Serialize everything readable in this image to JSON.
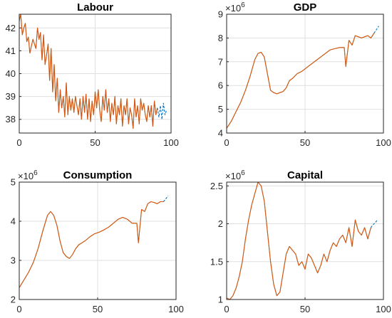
{
  "chart_data": [
    {
      "type": "line",
      "title": "Labour",
      "xlim": [
        0,
        100
      ],
      "ylim": [
        37.4,
        42.6
      ],
      "xticks": [
        0,
        50,
        100
      ],
      "yticks": [
        38,
        39,
        40,
        41,
        42
      ],
      "xticklabels": [
        "0",
        "50",
        "100"
      ],
      "yticklabels": [
        "38",
        "39",
        "40",
        "41",
        "42"
      ],
      "exponent": "",
      "grid": true,
      "series": [
        {
          "color": "#77ac30",
          "style": "solid",
          "x": [
            0,
            1,
            2,
            3,
            4,
            5,
            6,
            7,
            8,
            9,
            10,
            11,
            12,
            13,
            14,
            15,
            16,
            17,
            18,
            19,
            20,
            21,
            22,
            23,
            24,
            25,
            26,
            27,
            28,
            29,
            30,
            31,
            32,
            33,
            34,
            35,
            36,
            37,
            38,
            39,
            40,
            41,
            42,
            43,
            44,
            45,
            46,
            47,
            48,
            49,
            50,
            51,
            52,
            53,
            54,
            55,
            56,
            57,
            58,
            59,
            60,
            61,
            62,
            63,
            64,
            65,
            66,
            67,
            68,
            69,
            70,
            71,
            72,
            73,
            74,
            75,
            76,
            77,
            78,
            79,
            80,
            81,
            82,
            83,
            84,
            85,
            86,
            87,
            88,
            89,
            90,
            91
          ],
          "y": [
            42.3,
            42.6,
            41.7,
            42.0,
            42.2,
            41.4,
            41.6,
            40.9,
            41.2,
            41.5,
            41.3,
            41.1,
            42.0,
            41.5,
            41.8,
            40.6,
            41.7,
            40.4,
            40.8,
            41.3,
            39.7,
            41.1,
            39.2,
            40.4,
            38.8,
            39.8,
            38.3,
            39.3,
            38.5,
            39.0,
            38.1,
            39.6,
            38.2,
            39.0,
            38.4,
            38.9,
            38.3,
            39.0,
            38.6,
            38.2,
            38.9,
            38.0,
            39.0,
            38.3,
            39.1,
            38.0,
            38.9,
            37.9,
            38.8,
            38.2,
            39.2,
            38.5,
            39.3,
            38.4,
            37.9,
            39.0,
            38.4,
            39.3,
            38.3,
            38.9,
            37.9,
            38.7,
            38.2,
            39.0,
            37.8,
            38.6,
            38.2,
            38.9,
            37.7,
            38.6,
            38.2,
            38.9,
            37.8,
            38.5,
            38.2,
            37.6,
            38.9,
            38.1,
            38.6,
            37.8,
            38.9,
            38.4,
            38.7,
            38.2,
            37.9,
            38.6,
            38.1,
            38.6,
            37.7,
            38.8,
            38.2,
            38.5
          ]
        },
        {
          "color": "#d95319",
          "style": "solid",
          "x": [
            0,
            1,
            2,
            3,
            4,
            5,
            6,
            7,
            8,
            9,
            10,
            11,
            12,
            13,
            14,
            15,
            16,
            17,
            18,
            19,
            20,
            21,
            22,
            23,
            24,
            25,
            26,
            27,
            28,
            29,
            30,
            31,
            32,
            33,
            34,
            35,
            36,
            37,
            38,
            39,
            40,
            41,
            42,
            43,
            44,
            45,
            46,
            47,
            48,
            49,
            50,
            51,
            52,
            53,
            54,
            55,
            56,
            57,
            58,
            59,
            60,
            61,
            62,
            63,
            64,
            65,
            66,
            67,
            68,
            69,
            70,
            71,
            72,
            73,
            74,
            75,
            76,
            77,
            78,
            79,
            80,
            81,
            82,
            83,
            84,
            85,
            86,
            87,
            88,
            89,
            90,
            91
          ],
          "y": [
            42.3,
            42.6,
            41.7,
            42.0,
            42.2,
            41.4,
            41.6,
            40.9,
            41.2,
            41.5,
            41.3,
            41.1,
            42.0,
            41.5,
            41.8,
            40.6,
            41.7,
            40.4,
            40.8,
            41.3,
            39.7,
            41.1,
            39.2,
            40.4,
            38.8,
            39.8,
            38.3,
            39.3,
            38.5,
            39.0,
            38.1,
            39.6,
            38.2,
            39.0,
            38.4,
            38.9,
            38.3,
            39.0,
            38.6,
            38.2,
            38.9,
            38.0,
            39.0,
            38.3,
            39.1,
            38.0,
            38.9,
            37.9,
            38.8,
            38.2,
            39.2,
            38.5,
            39.3,
            38.4,
            37.9,
            39.0,
            38.4,
            39.3,
            38.3,
            38.9,
            37.9,
            38.7,
            38.2,
            39.0,
            37.8,
            38.6,
            38.2,
            38.9,
            37.7,
            38.6,
            38.2,
            38.9,
            37.8,
            38.5,
            38.2,
            37.6,
            38.9,
            38.1,
            38.6,
            37.8,
            38.9,
            38.4,
            38.7,
            38.2,
            37.9,
            38.6,
            38.1,
            38.6,
            37.7,
            38.8,
            38.2,
            38.5
          ]
        },
        {
          "color": "#0072bd",
          "style": "dashed",
          "x": [
            91,
            92,
            93,
            94,
            95,
            96,
            97
          ],
          "y": [
            38.5,
            38.1,
            38.6,
            38.0,
            38.7,
            38.2,
            38.4
          ]
        }
      ]
    },
    {
      "type": "line",
      "title": "GDP",
      "xlim": [
        0,
        100
      ],
      "ylim": [
        4,
        9
      ],
      "xticks": [
        0,
        50,
        100
      ],
      "yticks": [
        4,
        5,
        6,
        7,
        8,
        9
      ],
      "xticklabels": [
        "0",
        "50",
        "100"
      ],
      "yticklabels": [
        "4",
        "5",
        "6",
        "7",
        "8",
        "9"
      ],
      "exponent": "6",
      "grid": true,
      "series": [
        {
          "color": "#77ac30",
          "style": "solid",
          "x": [
            0,
            3,
            6,
            9,
            12,
            15,
            18,
            20,
            22,
            24,
            26,
            28,
            30,
            32,
            34,
            36,
            38,
            40,
            42,
            45,
            48,
            51,
            54,
            57,
            60,
            63,
            66,
            69,
            72,
            75,
            76,
            78,
            80,
            82,
            84,
            86,
            88,
            90,
            92,
            94
          ],
          "y": [
            4.2,
            4.5,
            4.9,
            5.3,
            5.8,
            6.4,
            7.1,
            7.35,
            7.4,
            7.2,
            6.5,
            5.8,
            5.7,
            5.65,
            5.7,
            5.75,
            5.9,
            6.2,
            6.3,
            6.5,
            6.6,
            6.75,
            6.9,
            7.05,
            7.2,
            7.35,
            7.5,
            7.55,
            7.6,
            7.6,
            6.8,
            7.9,
            7.7,
            8.1,
            8.05,
            8.0,
            8.05,
            8.1,
            8.0,
            8.2
          ]
        },
        {
          "color": "#d95319",
          "style": "solid",
          "x": [
            0,
            3,
            6,
            9,
            12,
            15,
            18,
            20,
            22,
            24,
            26,
            28,
            30,
            32,
            34,
            36,
            38,
            40,
            42,
            45,
            48,
            51,
            54,
            57,
            60,
            63,
            66,
            69,
            72,
            75,
            76,
            78,
            80,
            82,
            84,
            86,
            88,
            90,
            92,
            94
          ],
          "y": [
            4.2,
            4.5,
            4.9,
            5.3,
            5.8,
            6.4,
            7.1,
            7.35,
            7.4,
            7.2,
            6.5,
            5.8,
            5.7,
            5.65,
            5.7,
            5.75,
            5.9,
            6.2,
            6.3,
            6.5,
            6.6,
            6.75,
            6.9,
            7.05,
            7.2,
            7.35,
            7.5,
            7.55,
            7.6,
            7.6,
            6.8,
            7.9,
            7.7,
            8.1,
            8.05,
            8.0,
            8.05,
            8.1,
            8.0,
            8.2
          ]
        },
        {
          "color": "#0072bd",
          "style": "dashed",
          "x": [
            94,
            95,
            96,
            97
          ],
          "y": [
            8.2,
            8.3,
            8.4,
            8.5
          ]
        }
      ]
    },
    {
      "type": "line",
      "title": "Consumption",
      "xlim": [
        0,
        100
      ],
      "ylim": [
        2,
        5
      ],
      "xticks": [
        0,
        50,
        100
      ],
      "yticks": [
        2,
        3,
        4,
        5
      ],
      "xticklabels": [
        "0",
        "50",
        "100"
      ],
      "yticklabels": [
        "2",
        "3",
        "4",
        "5"
      ],
      "exponent": "6",
      "grid": true,
      "series": [
        {
          "color": "#77ac30",
          "style": "solid",
          "x": [
            0,
            3,
            6,
            9,
            12,
            15,
            18,
            20,
            22,
            24,
            26,
            28,
            30,
            32,
            34,
            36,
            38,
            40,
            42,
            45,
            48,
            51,
            54,
            57,
            60,
            63,
            66,
            69,
            72,
            75,
            76,
            78,
            80,
            82,
            84,
            86,
            88,
            90,
            92
          ],
          "y": [
            2.3,
            2.5,
            2.7,
            2.95,
            3.3,
            3.75,
            4.15,
            4.25,
            4.15,
            3.9,
            3.5,
            3.2,
            3.1,
            3.05,
            3.15,
            3.3,
            3.4,
            3.45,
            3.5,
            3.6,
            3.68,
            3.72,
            3.78,
            3.85,
            3.95,
            4.05,
            4.1,
            4.05,
            3.95,
            3.95,
            3.45,
            4.3,
            4.25,
            4.45,
            4.5,
            4.48,
            4.45,
            4.5,
            4.5
          ]
        },
        {
          "color": "#d95319",
          "style": "solid",
          "x": [
            0,
            3,
            6,
            9,
            12,
            15,
            18,
            20,
            22,
            24,
            26,
            28,
            30,
            32,
            34,
            36,
            38,
            40,
            42,
            45,
            48,
            51,
            54,
            57,
            60,
            63,
            66,
            69,
            72,
            75,
            76,
            78,
            80,
            82,
            84,
            86,
            88,
            90,
            92
          ],
          "y": [
            2.3,
            2.5,
            2.7,
            2.95,
            3.3,
            3.75,
            4.15,
            4.25,
            4.15,
            3.9,
            3.5,
            3.2,
            3.1,
            3.05,
            3.15,
            3.3,
            3.4,
            3.45,
            3.5,
            3.6,
            3.68,
            3.72,
            3.78,
            3.85,
            3.95,
            4.05,
            4.1,
            4.05,
            3.95,
            3.95,
            3.45,
            4.3,
            4.25,
            4.45,
            4.5,
            4.48,
            4.45,
            4.5,
            4.5
          ]
        },
        {
          "color": "#0072bd",
          "style": "dashed",
          "x": [
            92,
            93,
            94,
            95
          ],
          "y": [
            4.5,
            4.55,
            4.6,
            4.65
          ]
        }
      ]
    },
    {
      "type": "line",
      "title": "Capital",
      "xlim": [
        0,
        100
      ],
      "ylim": [
        1,
        2.55
      ],
      "xticks": [
        0,
        50,
        100
      ],
      "yticks": [
        1,
        1.5,
        2,
        2.5
      ],
      "xticklabels": [
        "0",
        "50",
        "100"
      ],
      "yticklabels": [
        "1",
        "1.5",
        "2",
        "2.5"
      ],
      "exponent": "6",
      "grid": true,
      "series": [
        {
          "color": "#77ac30",
          "style": "solid",
          "x": [
            0,
            2,
            4,
            6,
            8,
            10,
            12,
            14,
            16,
            18,
            20,
            22,
            24,
            26,
            28,
            30,
            32,
            34,
            36,
            38,
            40,
            42,
            44,
            46,
            48,
            50,
            52,
            54,
            56,
            58,
            60,
            62,
            64,
            66,
            68,
            70,
            72,
            74,
            76,
            78,
            80,
            82,
            84,
            86,
            88,
            90,
            92
          ],
          "y": [
            1.02,
            1.0,
            1.05,
            1.15,
            1.3,
            1.5,
            1.8,
            2.05,
            2.25,
            2.4,
            2.55,
            2.5,
            2.3,
            1.9,
            1.5,
            1.2,
            1.05,
            1.1,
            1.35,
            1.6,
            1.7,
            1.65,
            1.6,
            1.45,
            1.5,
            1.4,
            1.6,
            1.55,
            1.45,
            1.35,
            1.45,
            1.6,
            1.5,
            1.65,
            1.75,
            1.7,
            1.8,
            1.85,
            1.75,
            1.95,
            1.7,
            2.05,
            1.9,
            1.85,
            1.95,
            1.8,
            1.95
          ]
        },
        {
          "color": "#d95319",
          "style": "solid",
          "x": [
            0,
            2,
            4,
            6,
            8,
            10,
            12,
            14,
            16,
            18,
            20,
            22,
            24,
            26,
            28,
            30,
            32,
            34,
            36,
            38,
            40,
            42,
            44,
            46,
            48,
            50,
            52,
            54,
            56,
            58,
            60,
            62,
            64,
            66,
            68,
            70,
            72,
            74,
            76,
            78,
            80,
            82,
            84,
            86,
            88,
            90,
            92
          ],
          "y": [
            1.02,
            1.0,
            1.05,
            1.15,
            1.3,
            1.5,
            1.8,
            2.05,
            2.25,
            2.4,
            2.55,
            2.5,
            2.3,
            1.9,
            1.5,
            1.2,
            1.05,
            1.1,
            1.35,
            1.6,
            1.7,
            1.65,
            1.6,
            1.45,
            1.5,
            1.4,
            1.6,
            1.55,
            1.45,
            1.35,
            1.45,
            1.6,
            1.5,
            1.65,
            1.75,
            1.7,
            1.8,
            1.85,
            1.75,
            1.95,
            1.7,
            2.05,
            1.9,
            1.85,
            1.95,
            1.8,
            1.95
          ]
        },
        {
          "color": "#0072bd",
          "style": "dashed",
          "x": [
            92,
            93,
            94,
            95,
            96
          ],
          "y": [
            1.95,
            1.98,
            2.0,
            2.02,
            2.05
          ]
        }
      ]
    }
  ]
}
